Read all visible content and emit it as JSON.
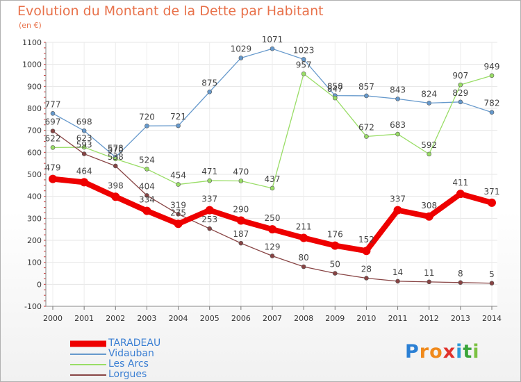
{
  "title": "Evolution du Montant de la Dette par Habitant",
  "unit": "(en €)",
  "logo": {
    "text": "Proxiti",
    "letters": [
      "P",
      "r",
      "o",
      "x",
      "i",
      "t",
      "i"
    ],
    "colors": [
      "#2a7fd4",
      "#f08a1c",
      "#f08a1c",
      "#e0322c",
      "#2a9ad8",
      "#3aa53a",
      "#7cc242"
    ]
  },
  "chart_data": {
    "type": "line",
    "x": [
      2000,
      2001,
      2002,
      2003,
      2004,
      2005,
      2006,
      2007,
      2008,
      2009,
      2010,
      2011,
      2012,
      2013,
      2014
    ],
    "ylim": [
      -100,
      1100
    ],
    "yticks": [
      -100,
      0,
      100,
      200,
      300,
      400,
      500,
      600,
      700,
      800,
      900,
      1000,
      1100
    ],
    "grid": true,
    "legend_position": "bottom-left",
    "series": [
      {
        "name": "TARADEAU",
        "color": "#ee0000",
        "width": 8,
        "values": [
          479,
          464,
          398,
          334,
          275,
          337,
          290,
          250,
          211,
          176,
          152,
          337,
          308,
          411,
          371
        ]
      },
      {
        "name": "Vidauban",
        "color": "#6699cc",
        "width": 1.3,
        "values": [
          777,
          698,
          578,
          720,
          721,
          875,
          1029,
          1071,
          1023,
          858,
          857,
          843,
          824,
          829,
          782
        ]
      },
      {
        "name": "Les Arcs",
        "color": "#99dd66",
        "width": 1.3,
        "values": [
          622,
          623,
          570,
          524,
          454,
          471,
          470,
          437,
          957,
          847,
          672,
          683,
          592,
          907,
          949
        ]
      },
      {
        "name": "Lorgues",
        "color": "#884444",
        "width": 1.3,
        "values": [
          697,
          593,
          538,
          404,
          319,
          253,
          187,
          129,
          80,
          50,
          28,
          14,
          11,
          8,
          5
        ]
      }
    ]
  }
}
